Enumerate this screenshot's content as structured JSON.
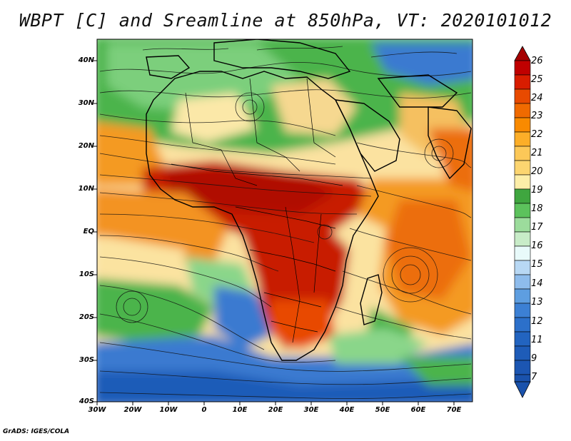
{
  "title": "WBPT [C] and Sreamline at 850hPa, VT: 2020101012",
  "credit": "GrADS: IGES/COLA",
  "map": {
    "lat_labels": [
      "40N",
      "30N",
      "20N",
      "10N",
      "EQ",
      "10S",
      "20S",
      "30S",
      "40S"
    ],
    "lon_labels": [
      "30W",
      "20W",
      "10W",
      "0",
      "10E",
      "20E",
      "30E",
      "40E",
      "50E",
      "60E",
      "70E"
    ],
    "lat_range": [
      -40,
      45
    ],
    "lon_range": [
      -30,
      75
    ]
  },
  "colorbar": {
    "labels": [
      "26",
      "25",
      "24",
      "23",
      "22",
      "21",
      "20",
      "19",
      "18",
      "17",
      "16",
      "15",
      "14",
      "13",
      "12",
      "11",
      "9",
      "7"
    ],
    "colors": [
      "#a50000",
      "#c00000",
      "#d81d00",
      "#e84a00",
      "#f06a00",
      "#f98a00",
      "#fcae28",
      "#fcd570",
      "#fdeea8",
      "#3fa63f",
      "#5cc25c",
      "#9cdc9c",
      "#e8fafa",
      "#b8d8f4",
      "#8ebcec",
      "#5e9ee0",
      "#3c80d4",
      "#2264c0",
      "#1a52ac"
    ]
  },
  "palette": {
    "red": "#c81a00",
    "orange": "#f59010",
    "yellow": "#fbe8a0",
    "green": "#3ea83e",
    "lightgreen": "#8ad68a",
    "blue": "#3a7ad0",
    "darkblue": "#1e5cb8"
  }
}
